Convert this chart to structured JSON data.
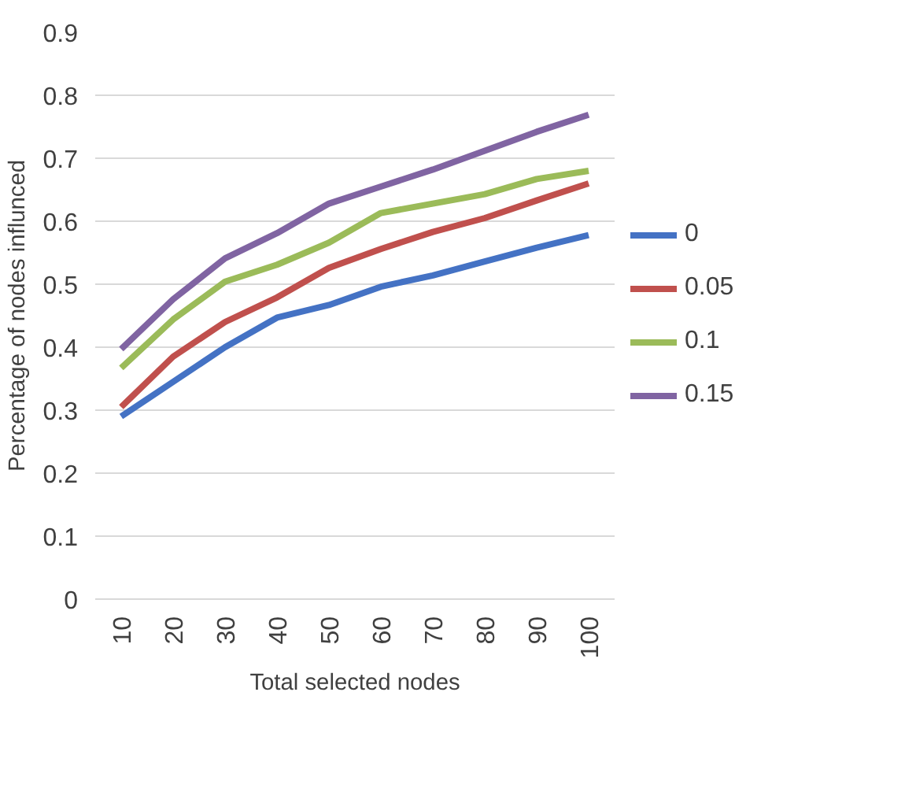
{
  "chart_data": {
    "type": "line",
    "xlabel": "Total selected nodes",
    "ylabel": "Percentage of nodes influnced",
    "categories": [
      "10",
      "20",
      "30",
      "40",
      "50",
      "60",
      "70",
      "80",
      "90",
      "100"
    ],
    "ylim": [
      0,
      0.9
    ],
    "yticks": [
      0,
      0.1,
      0.2,
      0.3,
      0.4,
      0.5,
      0.6,
      0.7,
      0.8,
      0.9
    ],
    "grid": "y",
    "legend": "right",
    "marker": "none",
    "line_style": "solid",
    "series": [
      {
        "name": "0",
        "color": "#4472c4",
        "values": [
          0.29,
          0.345,
          0.4,
          0.447,
          0.467,
          0.496,
          0.514,
          0.536,
          0.558,
          0.578
        ]
      },
      {
        "name": "0.05",
        "color": "#c0504d",
        "values": [
          0.305,
          0.385,
          0.44,
          0.479,
          0.526,
          0.556,
          0.583,
          0.605,
          0.633,
          0.66
        ]
      },
      {
        "name": "0.1",
        "color": "#9bbb59",
        "values": [
          0.367,
          0.444,
          0.504,
          0.531,
          0.566,
          0.613,
          0.628,
          0.643,
          0.667,
          0.68
        ]
      },
      {
        "name": "0.15",
        "color": "#8064a2",
        "values": [
          0.397,
          0.476,
          0.541,
          0.581,
          0.628,
          0.655,
          0.682,
          0.712,
          0.742,
          0.769
        ]
      }
    ]
  }
}
